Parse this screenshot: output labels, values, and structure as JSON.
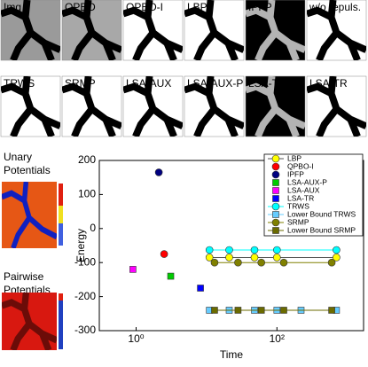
{
  "panels_top": [
    "Img",
    "QPBO",
    "QPBO-I",
    "LBP",
    "IPFP",
    "w/o repuls."
  ],
  "panels_bottom": [
    "TRWS",
    "SRMP",
    "LSA-AUX",
    "LSA-AUX-P",
    "LSA-TR-L",
    "LSA-TR"
  ],
  "unary_label": [
    "Unary",
    "Potentials"
  ],
  "pairwise_label": [
    "Pairwise",
    "Potentials"
  ],
  "chart_data": {
    "type": "scatter",
    "xlabel": "Time",
    "ylabel": "Energy",
    "xscale": "log",
    "xlim": [
      0.3,
      1700
    ],
    "ylim": [
      -300,
      200
    ],
    "xticks": [
      {
        "value": 1,
        "label": "10⁰"
      },
      {
        "value": 100,
        "label": "10²"
      }
    ],
    "yticks": [
      -300,
      -200,
      -100,
      0,
      100,
      200
    ],
    "series": [
      {
        "name": "LBP",
        "color": "#ffff00",
        "marker": "o",
        "line": true,
        "x": [
          11,
          21,
          48,
          100,
          700
        ],
        "values": [
          -85,
          -85,
          -85,
          -85,
          -85
        ]
      },
      {
        "name": "QPBO-I",
        "color": "#ff0000",
        "marker": "o",
        "line": false,
        "x": [
          2.5
        ],
        "values": [
          -75
        ]
      },
      {
        "name": "IPFP",
        "color": "#000080",
        "marker": "o",
        "line": false,
        "x": [
          2.1
        ],
        "values": [
          165
        ]
      },
      {
        "name": "LSA-AUX-P",
        "color": "#00cc00",
        "marker": "s",
        "line": false,
        "x": [
          3.1
        ],
        "values": [
          -140
        ]
      },
      {
        "name": "LSA-AUX",
        "color": "#ff00ff",
        "marker": "s",
        "line": false,
        "x": [
          0.9
        ],
        "values": [
          -120
        ]
      },
      {
        "name": "LSA-TR",
        "color": "#0000ff",
        "marker": "s",
        "line": false,
        "x": [
          8.2
        ],
        "values": [
          -175
        ]
      },
      {
        "name": "TRWS",
        "color": "#00ffff",
        "marker": "o",
        "line": true,
        "x": [
          11,
          21,
          48,
          100,
          700
        ],
        "values": [
          -63,
          -63,
          -63,
          -63,
          -63
        ]
      },
      {
        "name": "Lower Bound TRWS",
        "color": "#66ccff",
        "marker": "s",
        "line": true,
        "x": [
          11,
          21,
          48,
          100,
          220,
          700
        ],
        "values": [
          -240,
          -240,
          -240,
          -240,
          -240,
          -240
        ]
      },
      {
        "name": "SRMP",
        "color": "#808000",
        "marker": "o",
        "line": true,
        "x": [
          13,
          28,
          60,
          125,
          600
        ],
        "values": [
          -100,
          -100,
          -100,
          -100,
          -100
        ]
      },
      {
        "name": "Lower Bound SRMP",
        "color": "#6b6b00",
        "marker": "s",
        "line": true,
        "x": [
          13,
          28,
          60,
          125,
          600
        ],
        "values": [
          -240,
          -240,
          -240,
          -240,
          -240
        ]
      }
    ]
  }
}
